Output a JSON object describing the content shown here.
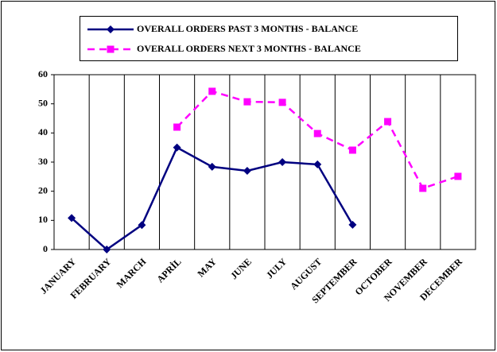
{
  "chart_data": {
    "type": "line",
    "categories": [
      "JANUARY",
      "FEBRUARY",
      "MARCH",
      "APRİL",
      "MAY",
      "JUNE",
      "JULY",
      "AUGUST",
      "SEPTEMBER",
      "OCTOBER",
      "NOVEMBER",
      "DECEMBER"
    ],
    "series": [
      {
        "name": "OVERALL ORDERS PAST 3 MONTHS - BALANCE",
        "color": "#000080",
        "marker": "diamond",
        "line_style": "solid",
        "values": [
          10.8,
          0,
          8.4,
          35,
          28.4,
          27,
          30,
          29.2,
          8.5,
          null,
          null,
          null
        ]
      },
      {
        "name": "OVERALL ORDERS NEXT 3 MONTHS - BALANCE",
        "color": "#ff00ff",
        "marker": "square",
        "line_style": "dashed",
        "values": [
          null,
          null,
          null,
          42,
          54.3,
          50.7,
          50.5,
          39.8,
          34.1,
          43.9,
          21,
          25.1
        ]
      }
    ],
    "ylim": [
      0,
      60
    ],
    "yticks": [
      0,
      10,
      20,
      30,
      40,
      50,
      60
    ],
    "grid": true,
    "legend": "top"
  }
}
